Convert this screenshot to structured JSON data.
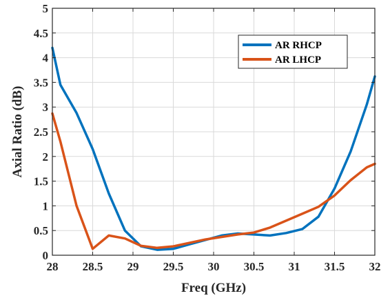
{
  "chart_data": {
    "type": "line",
    "title": "",
    "xlabel": "Freq (GHz)",
    "ylabel": "Axial Ratio (dB)",
    "xlim": [
      28,
      32
    ],
    "ylim": [
      0,
      5
    ],
    "xticks": [
      28,
      28.5,
      29,
      29.5,
      30,
      30.5,
      31,
      31.5,
      32
    ],
    "xtick_labels": [
      "28",
      "28.5",
      "29",
      "29.5",
      "30",
      "30.5",
      "31",
      "31.5",
      "32"
    ],
    "yticks": [
      0,
      0.5,
      1,
      1.5,
      2,
      2.5,
      3,
      3.5,
      4,
      4.5,
      5
    ],
    "ytick_labels": [
      "0",
      "0.5",
      "1",
      "1.5",
      "2",
      "2.5",
      "3",
      "3.5",
      "4",
      "4.5",
      "5"
    ],
    "grid": true,
    "legend_position": "top-right",
    "series": [
      {
        "name": "AR RHCP",
        "color": "#0072BD",
        "x": [
          28,
          28.1,
          28.3,
          28.5,
          28.7,
          28.9,
          29.1,
          29.3,
          29.5,
          29.7,
          29.9,
          30.1,
          30.3,
          30.5,
          30.7,
          30.9,
          31.1,
          31.3,
          31.5,
          31.7,
          31.9,
          32
        ],
        "y": [
          4.2,
          3.45,
          2.88,
          2.15,
          1.25,
          0.5,
          0.18,
          0.11,
          0.13,
          0.22,
          0.31,
          0.4,
          0.44,
          0.42,
          0.4,
          0.45,
          0.53,
          0.78,
          1.35,
          2.1,
          3.05,
          3.62
        ]
      },
      {
        "name": "AR LHCP",
        "color": "#D95319",
        "x": [
          28,
          28.1,
          28.3,
          28.5,
          28.7,
          28.9,
          29.1,
          29.3,
          29.5,
          29.7,
          29.9,
          30.1,
          30.3,
          30.5,
          30.7,
          30.9,
          31.1,
          31.3,
          31.5,
          31.7,
          31.9,
          32
        ],
        "y": [
          2.87,
          2.3,
          1.0,
          0.13,
          0.4,
          0.34,
          0.19,
          0.15,
          0.18,
          0.25,
          0.32,
          0.37,
          0.42,
          0.46,
          0.56,
          0.7,
          0.84,
          0.98,
          1.21,
          1.52,
          1.78,
          1.85
        ]
      }
    ]
  }
}
